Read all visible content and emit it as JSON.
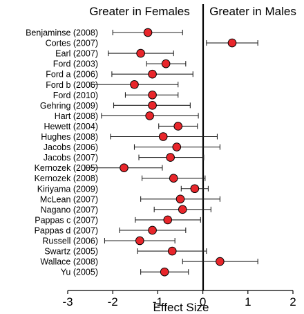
{
  "chart_data": {
    "type": "forest",
    "xlabel": "Effect Size",
    "xlim": [
      -3,
      2
    ],
    "xticks": [
      -3,
      -2,
      -1,
      0,
      1,
      2
    ],
    "left_header": "Greater in Females",
    "right_header": "Greater in Males",
    "marker_color": "#e8262b",
    "reference_line": 0,
    "studies": [
      {
        "label": "Benjaminse (2008)",
        "effect": -1.22,
        "ci": [
          -2.0,
          -0.45
        ]
      },
      {
        "label": "Cortes (2007)",
        "effect": 0.65,
        "ci": [
          0.08,
          1.22
        ]
      },
      {
        "label": "Earl (2007)",
        "effect": -1.38,
        "ci": [
          -2.1,
          -0.65
        ]
      },
      {
        "label": "Ford (2003)",
        "effect": -0.82,
        "ci": [
          -1.25,
          -0.38
        ]
      },
      {
        "label": "Ford a (2006)",
        "effect": -1.12,
        "ci": [
          -2.02,
          -0.22
        ]
      },
      {
        "label": "Ford b (2006)",
        "effect": -1.52,
        "ci": [
          -2.48,
          -0.55
        ]
      },
      {
        "label": "Ford (2010)",
        "effect": -1.12,
        "ci": [
          -1.72,
          -0.55
        ]
      },
      {
        "label": "Gehring (2009)",
        "effect": -1.12,
        "ci": [
          -1.98,
          -0.28
        ]
      },
      {
        "label": "Hart (2008)",
        "effect": -1.18,
        "ci": [
          -2.25,
          -0.1
        ]
      },
      {
        "label": "Hewett (2004)",
        "effect": -0.55,
        "ci": [
          -0.98,
          -0.12
        ]
      },
      {
        "label": "Hughes (2008)",
        "effect": -0.88,
        "ci": [
          -2.05,
          0.32
        ]
      },
      {
        "label": "Jacobs (2006)",
        "effect": -0.58,
        "ci": [
          -1.52,
          0.38
        ]
      },
      {
        "label": "Jacobs (2007)",
        "effect": -0.72,
        "ci": [
          -1.42,
          0.02
        ]
      },
      {
        "label": "Kernozek (2005)",
        "effect": -1.75,
        "ci": [
          -2.62,
          -0.9
        ]
      },
      {
        "label": "Kernozek (2008)",
        "effect": -0.65,
        "ci": [
          -1.35,
          0.05
        ]
      },
      {
        "label": "Kiriyama (2009)",
        "effect": -0.18,
        "ci": [
          -0.48,
          0.12
        ]
      },
      {
        "label": "McLean (2007)",
        "effect": -0.5,
        "ci": [
          -1.38,
          0.38
        ]
      },
      {
        "label": "Nagano (2007)",
        "effect": -0.45,
        "ci": [
          -1.08,
          0.18
        ]
      },
      {
        "label": "Pappas c (2007)",
        "effect": -0.78,
        "ci": [
          -1.5,
          -0.05
        ]
      },
      {
        "label": "Pappas d (2007)",
        "effect": -1.12,
        "ci": [
          -1.85,
          -0.38
        ]
      },
      {
        "label": "Russell (2006)",
        "effect": -1.4,
        "ci": [
          -2.18,
          -0.62
        ]
      },
      {
        "label": "Swartz (2005)",
        "effect": -0.68,
        "ci": [
          -1.45,
          0.08
        ]
      },
      {
        "label": "Wallace (2008)",
        "effect": 0.38,
        "ci": [
          -0.45,
          1.22
        ]
      },
      {
        "label": "Yu (2005)",
        "effect": -0.85,
        "ci": [
          -1.38,
          -0.32
        ]
      }
    ]
  }
}
